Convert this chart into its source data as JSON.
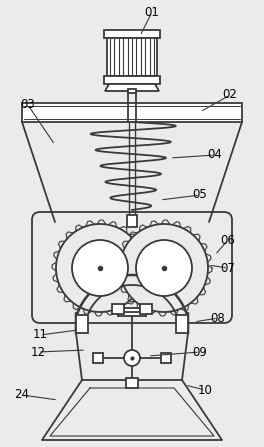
{
  "fig_width": 2.64,
  "fig_height": 4.47,
  "dpi": 100,
  "bg_color": "#ebebeb",
  "line_color": "#3a3a3a",
  "label_fontsize": 8.5
}
